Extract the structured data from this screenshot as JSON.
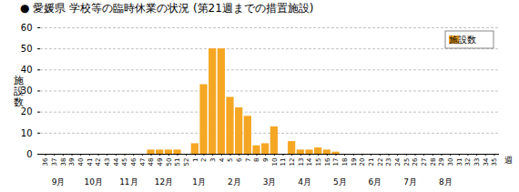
{
  "chart_data": {
    "type": "bar",
    "title": "● 愛媛県 学校等の臨時休業の状況 (第21週までの措置施設)",
    "ylabel": "施\n設\n数",
    "xlabel": "週",
    "categories": [
      "36",
      "37",
      "38",
      "39",
      "40",
      "41",
      "42",
      "43",
      "44",
      "45",
      "46",
      "47",
      "48",
      "49",
      "50",
      "51",
      "52",
      "1",
      "2",
      "3",
      "4",
      "5",
      "6",
      "7",
      "8",
      "9",
      "10",
      "11",
      "12",
      "13",
      "14",
      "15",
      "16",
      "17",
      "18",
      "19",
      "20",
      "21",
      "22",
      "23",
      "24",
      "25",
      "26",
      "27",
      "28",
      "29",
      "30",
      "31",
      "32",
      "33",
      "34",
      "35"
    ],
    "series": [
      {
        "name": "施設数",
        "color": "#F5A623",
        "values": [
          0,
          0,
          0,
          0,
          0,
          0,
          0,
          0,
          0,
          0,
          0,
          0,
          2,
          2,
          2,
          2,
          0,
          5,
          33,
          50,
          50,
          27,
          22,
          18,
          4,
          5,
          13,
          0,
          6,
          2,
          2,
          3,
          2,
          1,
          0,
          0,
          0,
          0,
          0,
          0,
          0,
          0,
          0,
          0,
          0,
          0,
          0,
          0,
          0,
          0,
          0,
          0
        ]
      }
    ],
    "annotations": [
      {
        "text": "9月",
        "from": "36",
        "to": "39"
      },
      {
        "text": "10月",
        "from": "40",
        "to": "43"
      },
      {
        "text": "11月",
        "from": "44",
        "to": "47"
      },
      {
        "text": "12月",
        "from": "48",
        "to": "51"
      },
      {
        "text": "1月",
        "from": "52",
        "to": "3"
      },
      {
        "text": "2月",
        "from": "4",
        "to": "7"
      },
      {
        "text": "3月",
        "from": "8",
        "to": "11"
      },
      {
        "text": "4月",
        "from": "12",
        "to": "15"
      },
      {
        "text": "5月",
        "from": "16",
        "to": "19"
      },
      {
        "text": "6月",
        "from": "20",
        "to": "23"
      },
      {
        "text": "7月",
        "from": "24",
        "to": "27"
      },
      {
        "text": "8月",
        "from": "28",
        "to": "31"
      }
    ],
    "ylim": [
      0,
      60
    ],
    "yticks": [
      0,
      10,
      20,
      30,
      40,
      50,
      60
    ],
    "grid": true,
    "legend": "upper right"
  }
}
